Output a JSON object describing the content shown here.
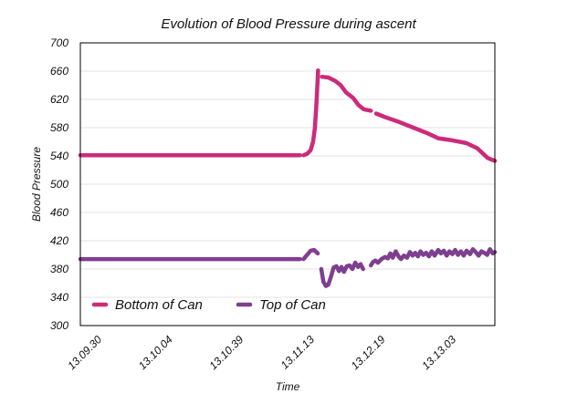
{
  "chart_data": {
    "type": "line",
    "title": "Evolution of Blood Pressure during ascent",
    "xlabel": "Time",
    "ylabel": "Blood Pressure",
    "ylim": [
      300,
      700
    ],
    "yticks": [
      300,
      340,
      380,
      420,
      460,
      500,
      540,
      580,
      620,
      660,
      700
    ],
    "xlim": [
      0,
      117
    ],
    "xticks": [
      {
        "t": 0,
        "label": "13.09.30"
      },
      {
        "t": 20,
        "label": "13.10.04"
      },
      {
        "t": 40,
        "label": "13.10.39"
      },
      {
        "t": 60,
        "label": "13.11.13"
      },
      {
        "t": 80,
        "label": "13.12.19"
      },
      {
        "t": 100,
        "label": "13.13.03"
      }
    ],
    "grid": true,
    "legend_position": "lower-left",
    "series": [
      {
        "name": "Bottom of Can",
        "color": "#cc2b7a",
        "segments": [
          [
            [
              0,
              541
            ],
            [
              62,
              541
            ]
          ],
          [
            [
              63,
              541
            ],
            [
              64,
              543
            ],
            [
              65,
              548
            ],
            [
              65.7,
              560
            ],
            [
              66.2,
              580
            ],
            [
              66.6,
              610
            ],
            [
              66.9,
              640
            ],
            [
              67.1,
              661
            ]
          ],
          [
            [
              68.2,
              652
            ],
            [
              70,
              651
            ],
            [
              72,
              646
            ],
            [
              73.5,
              640
            ],
            [
              75,
              630
            ],
            [
              77,
              622
            ],
            [
              78.5,
              612
            ],
            [
              80,
              606
            ],
            [
              82,
              604
            ]
          ],
          [
            [
              83.5,
              600
            ],
            [
              86,
              595
            ],
            [
              90,
              588
            ],
            [
              94,
              580
            ],
            [
              98,
              572
            ],
            [
              101,
              565
            ],
            [
              105,
              562
            ],
            [
              109,
              558
            ],
            [
              112,
              551
            ],
            [
              115,
              537
            ],
            [
              117,
              533
            ]
          ]
        ]
      },
      {
        "name": "Top of Can",
        "color": "#7f3f8f",
        "segments": [
          [
            [
              0,
              394
            ],
            [
              62,
              394
            ]
          ],
          [
            [
              63,
              394
            ],
            [
              64,
              400
            ],
            [
              65,
              406
            ],
            [
              66,
              407
            ],
            [
              67,
              402
            ]
          ],
          [
            [
              68,
              380
            ],
            [
              68.6,
              362
            ],
            [
              69.3,
              356
            ],
            [
              70,
              358
            ],
            [
              70.8,
              370
            ],
            [
              71.5,
              382
            ],
            [
              72.3,
              384
            ],
            [
              73,
              377
            ],
            [
              73.7,
              383
            ],
            [
              74.4,
              376
            ],
            [
              75.2,
              384
            ],
            [
              76,
              385
            ],
            [
              76.8,
              380
            ],
            [
              77.6,
              389
            ],
            [
              78.4,
              383
            ],
            [
              79.1,
              387
            ],
            [
              79.8,
              380
            ]
          ],
          [
            [
              82,
              385
            ],
            [
              82.6,
              390
            ],
            [
              83.3,
              392
            ],
            [
              84,
              389
            ],
            [
              85,
              394
            ],
            [
              86,
              397
            ],
            [
              86.8,
              395
            ],
            [
              87.5,
              402
            ],
            [
              88.2,
              396
            ],
            [
              89,
              405
            ],
            [
              89.8,
              398
            ],
            [
              90.5,
              394
            ],
            [
              91.3,
              399
            ],
            [
              92.2,
              396
            ],
            [
              93,
              404
            ],
            [
              93.8,
              399
            ],
            [
              94.5,
              403
            ],
            [
              95.3,
              398
            ],
            [
              96,
              405
            ],
            [
              96.8,
              400
            ],
            [
              97.6,
              403
            ],
            [
              98.4,
              398
            ],
            [
              99.2,
              405
            ],
            [
              100,
              399
            ],
            [
              101,
              407
            ],
            [
              101.8,
              402
            ],
            [
              102.6,
              406
            ],
            [
              103.4,
              399
            ],
            [
              104.2,
              405
            ],
            [
              105,
              401
            ],
            [
              105.8,
              407
            ],
            [
              106.6,
              400
            ],
            [
              107.4,
              405
            ],
            [
              108.2,
              399
            ],
            [
              109,
              406
            ],
            [
              110,
              401
            ],
            [
              110.8,
              408
            ],
            [
              111.6,
              404
            ],
            [
              112.4,
              399
            ],
            [
              113.2,
              405
            ],
            [
              114,
              403
            ],
            [
              114.8,
              400
            ],
            [
              115.6,
              408
            ],
            [
              116.4,
              402
            ],
            [
              117,
              404
            ]
          ]
        ]
      }
    ]
  }
}
